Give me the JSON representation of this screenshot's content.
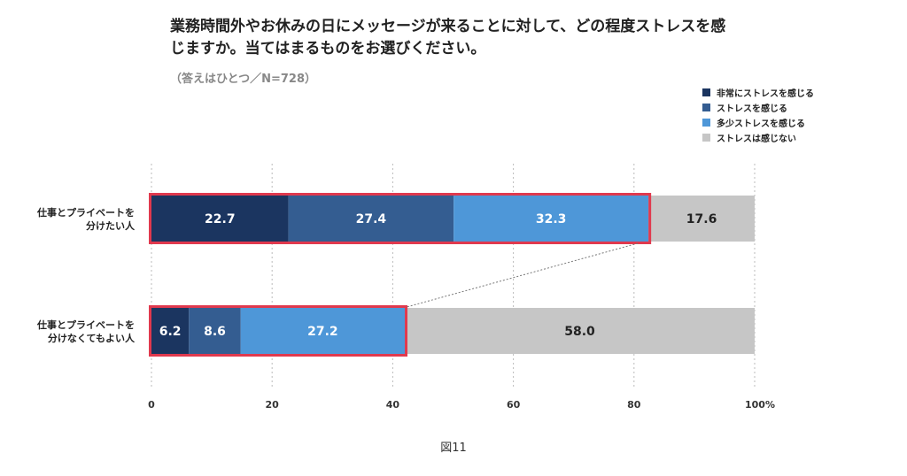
{
  "title_lines": [
    "業務時間外やお休みの日にメッセージが来ることに対して、どの程度ストレスを感",
    "じますか。当てはまるものをお選びください。"
  ],
  "subtitle": "（答えはひとつ／N=728）",
  "caption": "図11",
  "colors": {
    "very": "#1b3560",
    "stress": "#345d91",
    "some": "#4e97d8",
    "none": "#c6c6c6",
    "highlight": "#e0394e",
    "grid": "#bbbbbb"
  },
  "legend": [
    {
      "label": "非常にストレスを感じる",
      "color": "#1b3560"
    },
    {
      "label": "ストレスを感じる",
      "color": "#345d91"
    },
    {
      "label": "多少ストレスを感じる",
      "color": "#4e97d8"
    },
    {
      "label": "ストレスは感じない",
      "color": "#c6c6c6"
    }
  ],
  "chart_data": {
    "type": "bar",
    "orientation": "horizontal",
    "stacked": true,
    "categories": [
      [
        "仕事とプライベートを",
        "分けたい人"
      ],
      [
        "仕事とプライベートを",
        "分けなくてもよい人"
      ]
    ],
    "series": [
      {
        "name": "非常にストレスを感じる",
        "values": [
          22.7,
          6.2
        ],
        "color": "#1b3560"
      },
      {
        "name": "ストレスを感じる",
        "values": [
          27.4,
          8.6
        ],
        "color": "#345d91"
      },
      {
        "name": "多少ストレスを感じる",
        "values": [
          32.3,
          27.2
        ],
        "color": "#4e97d8"
      },
      {
        "name": "ストレスは感じない",
        "values": [
          17.6,
          58.0
        ],
        "color": "#c6c6c6"
      }
    ],
    "xlim": [
      0,
      100
    ],
    "xticks": [
      "0",
      "20",
      "40",
      "60",
      "80",
      "100%"
    ],
    "grid": true,
    "legend_position": "top-right",
    "highlight": "first three series outlined in red, joined by a dotted line"
  }
}
